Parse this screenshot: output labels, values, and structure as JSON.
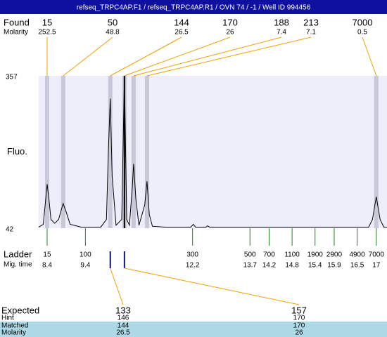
{
  "header": {
    "title": "refseq_TRPC4AP.F1 / refseq_TRPC4AP.R1 / OVN 74 / -1 / Well ID 994456"
  },
  "chart_data": {
    "type": "electropherogram",
    "y_label": "Fluo.",
    "ylim": [
      42,
      357
    ],
    "yticks": [
      42,
      357
    ],
    "xlim": [
      8.18,
      17.28
    ],
    "plot_background": "#eeeefa",
    "trace": {
      "color": "#000000",
      "x": [
        8.18,
        8.3,
        8.35,
        8.4,
        8.45,
        8.5,
        8.6,
        8.7,
        8.8,
        8.82,
        8.9,
        9.0,
        9.3,
        9.8,
        9.95,
        10.0,
        10.05,
        10.1,
        10.2,
        10.35,
        10.42,
        10.48,
        10.55,
        10.62,
        10.66,
        10.72,
        10.8,
        10.95,
        11.01,
        11.07,
        11.15,
        11.5,
        12.15,
        12.22,
        12.28,
        12.55,
        12.59,
        12.65,
        16.8,
        16.9,
        17.0,
        17.1,
        17.2,
        17.28
      ],
      "values": [
        44,
        50,
        90,
        133,
        100,
        60,
        52,
        60,
        88,
        93,
        75,
        50,
        44,
        44,
        60,
        200,
        310,
        150,
        48,
        60,
        357,
        60,
        48,
        120,
        175,
        100,
        48,
        90,
        139,
        70,
        46,
        44,
        44,
        50,
        44,
        44,
        47,
        44,
        44,
        60,
        107,
        60,
        44,
        44
      ]
    },
    "found": {
      "label": "Found",
      "sublabel": "Molarity",
      "sizes": [
        15,
        50,
        144,
        170,
        188,
        213,
        7000
      ],
      "molarity": [
        252.5,
        48.8,
        26.5,
        26,
        7.4,
        7.1,
        0.5
      ],
      "x": [
        8.4,
        8.82,
        10.05,
        10.42,
        10.66,
        11.01,
        17.0
      ]
    },
    "ladder": {
      "label": "Ladder",
      "sublabel": "Mig. time",
      "sizes": [
        15,
        100,
        300,
        500,
        700,
        1100,
        1900,
        2900,
        4900,
        7000
      ],
      "x": [
        8.4,
        9.4,
        12.2,
        13.7,
        14.2,
        14.8,
        15.4,
        15.9,
        16.5,
        17
      ]
    },
    "expected": {
      "labels": [
        "Expected",
        "Hint",
        "Matched",
        "Molarity"
      ],
      "expected": [
        133,
        157
      ],
      "hint": [
        146,
        170
      ],
      "matched": [
        144,
        170
      ],
      "molarity": [
        26.5,
        26
      ],
      "x": [
        10.05,
        10.42
      ]
    }
  }
}
